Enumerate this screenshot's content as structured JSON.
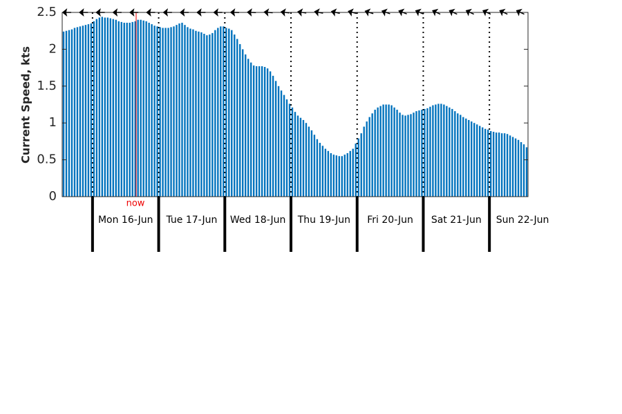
{
  "chart_data": {
    "type": "bar",
    "ylabel": "Current Speed, kts",
    "color": "#0072bd",
    "ylim": [
      0,
      2.5
    ],
    "yticks": [
      0,
      0.5,
      1,
      1.5,
      2,
      2.5
    ],
    "annotation": "now",
    "day_labels": [
      "Mon 16-Jun",
      "Tue 17-Jun",
      "Wed 18-Jun",
      "Thu 19-Jun",
      "Fri 20-Jun",
      "Sat 21-Jun",
      "Sun 22-Jun"
    ],
    "values": [
      2.24,
      2.25,
      2.26,
      2.27,
      2.29,
      2.3,
      2.31,
      2.32,
      2.33,
      2.34,
      2.35,
      2.38,
      2.41,
      2.43,
      2.44,
      2.43,
      2.43,
      2.42,
      2.41,
      2.4,
      2.38,
      2.37,
      2.36,
      2.36,
      2.36,
      2.37,
      2.38,
      2.4,
      2.4,
      2.39,
      2.38,
      2.36,
      2.34,
      2.32,
      2.31,
      2.3,
      2.29,
      2.29,
      2.29,
      2.3,
      2.31,
      2.33,
      2.35,
      2.36,
      2.33,
      2.3,
      2.28,
      2.27,
      2.25,
      2.24,
      2.23,
      2.21,
      2.19,
      2.2,
      2.22,
      2.26,
      2.29,
      2.31,
      2.31,
      2.29,
      2.28,
      2.26,
      2.2,
      2.14,
      2.07,
      2.0,
      1.93,
      1.87,
      1.82,
      1.78,
      1.77,
      1.77,
      1.77,
      1.76,
      1.74,
      1.7,
      1.64,
      1.57,
      1.5,
      1.44,
      1.38,
      1.32,
      1.26,
      1.21,
      1.15,
      1.1,
      1.07,
      1.04,
      1.0,
      0.95,
      0.9,
      0.84,
      0.78,
      0.73,
      0.69,
      0.65,
      0.62,
      0.59,
      0.57,
      0.56,
      0.55,
      0.55,
      0.57,
      0.59,
      0.62,
      0.65,
      0.72,
      0.79,
      0.86,
      0.95,
      1.02,
      1.08,
      1.13,
      1.18,
      1.21,
      1.23,
      1.25,
      1.25,
      1.25,
      1.24,
      1.21,
      1.18,
      1.14,
      1.11,
      1.1,
      1.11,
      1.12,
      1.14,
      1.16,
      1.17,
      1.18,
      1.19,
      1.2,
      1.22,
      1.24,
      1.25,
      1.26,
      1.26,
      1.25,
      1.23,
      1.21,
      1.19,
      1.16,
      1.13,
      1.11,
      1.08,
      1.06,
      1.04,
      1.02,
      1.0,
      0.98,
      0.96,
      0.94,
      0.92,
      0.91,
      0.89,
      0.88,
      0.87,
      0.87,
      0.86,
      0.86,
      0.85,
      0.83,
      0.81,
      0.79,
      0.77,
      0.74,
      0.71,
      0.67
    ]
  }
}
